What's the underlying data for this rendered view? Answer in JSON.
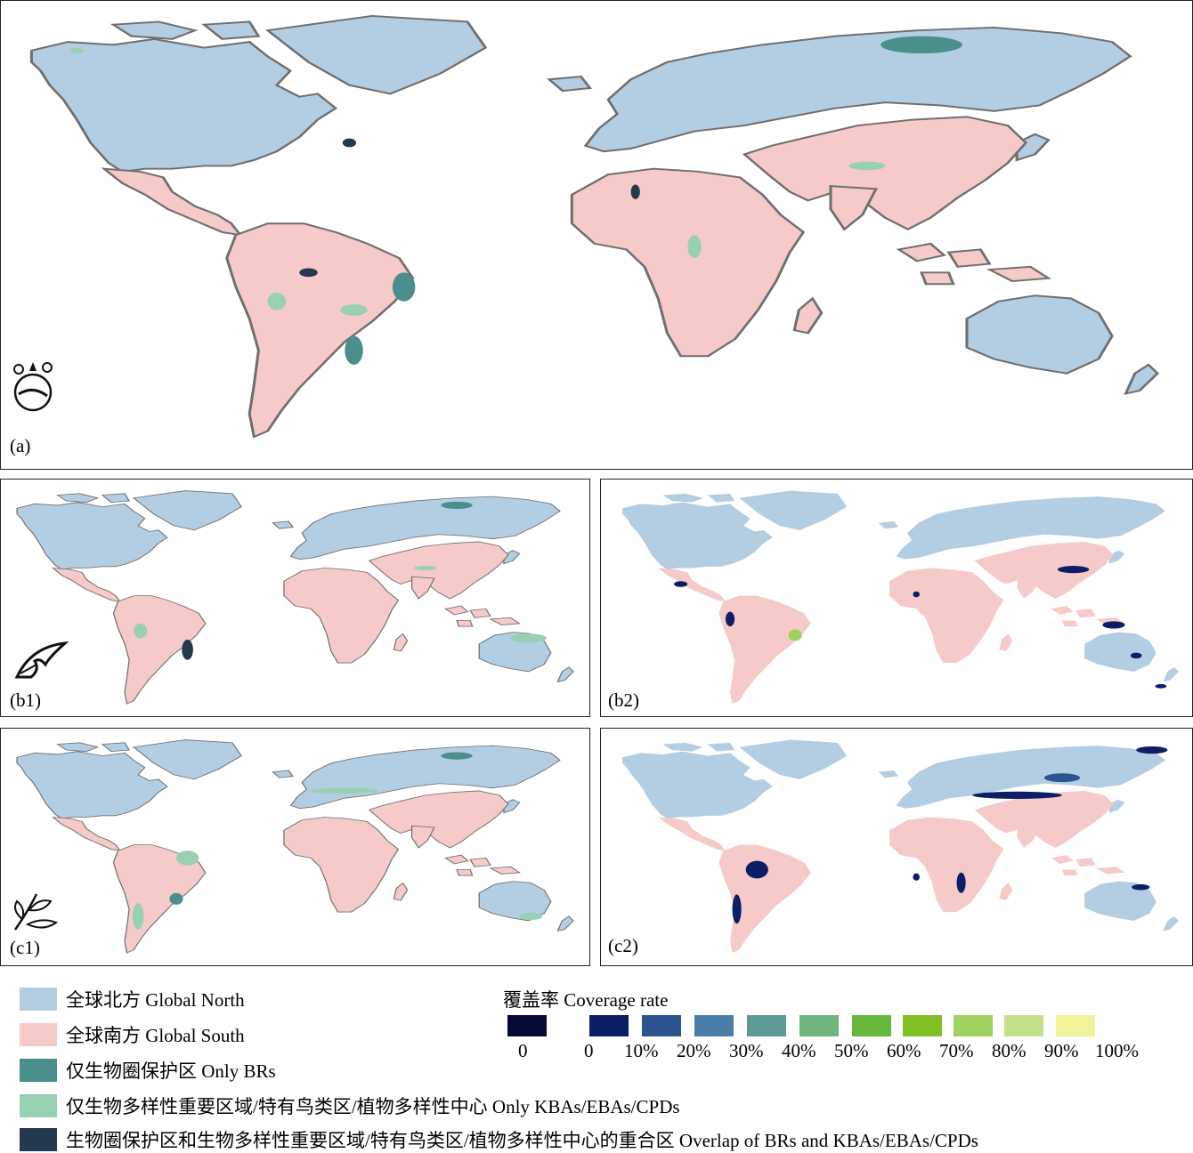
{
  "colors": {
    "global_north": "#b3cde3",
    "global_south": "#f6cac8",
    "only_brs": "#4a8f8c",
    "only_kbas": "#98d0b2",
    "overlap": "#23394d",
    "coastline": "#6f6f6f"
  },
  "panels": {
    "a": {
      "label": "(a)",
      "emblem": "biodiversity-icon"
    },
    "b1": {
      "label": "(b1)",
      "emblem": "bird-icon"
    },
    "b2": {
      "label": "(b2)"
    },
    "c1": {
      "label": "(c1)",
      "emblem": "plant-icon"
    },
    "c2": {
      "label": "(c2)"
    }
  },
  "legend": {
    "items": [
      {
        "label": "全球北方 Global North",
        "color": "#b3cde3"
      },
      {
        "label": "全球南方 Global South",
        "color": "#f6cac8"
      },
      {
        "label": "仅生物圈保护区 Only BRs",
        "color": "#4a8f8c"
      },
      {
        "label": "仅生物多样性重要区域/特有鸟类区/植物多样性中心 Only KBAs/EBAs/CPDs",
        "color": "#98d0b2"
      },
      {
        "label": "生物圈保护区和生物多样性重要区域/特有鸟类区/植物多样性中心的重合区 Overlap of BRs and KBAs/EBAs/CPDs",
        "color": "#23394d"
      }
    ]
  },
  "coverage": {
    "title": "覆盖率 Coverage rate",
    "boxes": [
      "#070b33",
      "#0c1e66",
      "#2c5590",
      "#4a7ea8",
      "#5e9a96",
      "#6fb57e",
      "#67b83c",
      "#80c025",
      "#a0d160",
      "#c3df8c",
      "#f0f39a"
    ],
    "ticks": [
      "0",
      "0",
      "10%",
      "20%",
      "30%",
      "40%",
      "50%",
      "60%",
      "70%",
      "80%",
      "90%",
      "100%"
    ]
  }
}
